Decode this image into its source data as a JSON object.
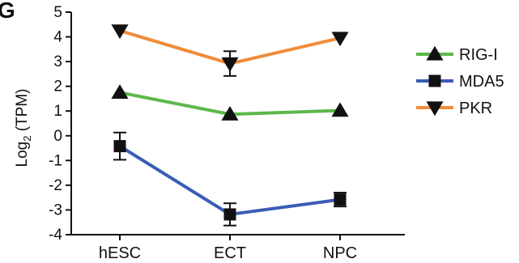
{
  "panel_letter": "G",
  "chart_data": {
    "type": "line",
    "title": "",
    "xlabel": "",
    "ylabel": "Log",
    "ylabel_sub": "2",
    "ylabel_suffix": " (TPM)",
    "ylim": [
      -4,
      5
    ],
    "yticks": [
      5,
      4,
      3,
      2,
      1,
      0,
      -1,
      -2,
      -3,
      -4
    ],
    "ytick_labels": [
      "5",
      "4",
      "3",
      "2",
      "1",
      "0",
      "-1",
      "-2",
      "-3",
      "-4"
    ],
    "categories": [
      "hESC",
      "ECT",
      "NPC"
    ],
    "grid": false,
    "legend_position": "right",
    "series": [
      {
        "name": "RIG-I",
        "marker": "triangle-up",
        "color": "#5cb84a",
        "values": [
          1.75,
          0.87,
          1.02
        ],
        "errors": [
          0,
          0,
          0
        ]
      },
      {
        "name": "MDA5",
        "marker": "square",
        "color": "#3a5db5",
        "values": [
          -0.42,
          -3.18,
          -2.58
        ],
        "errors": [
          0.55,
          0.45,
          0.28
        ]
      },
      {
        "name": "PKR",
        "marker": "triangle-down",
        "color": "#f08c3a",
        "values": [
          4.25,
          2.92,
          3.95
        ],
        "errors": [
          0,
          0.5,
          0
        ]
      }
    ]
  }
}
